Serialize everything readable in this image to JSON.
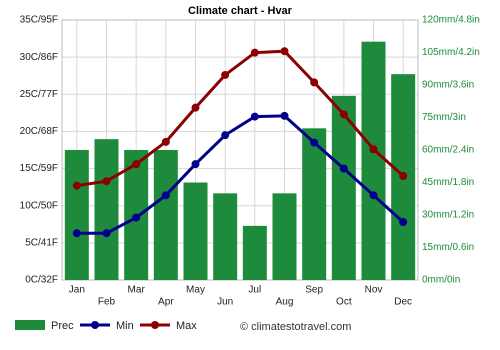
{
  "chart_data": {
    "type": "bar_line",
    "title": "Climate chart - Hvar",
    "categories": [
      "Jan",
      "Feb",
      "Mar",
      "Apr",
      "May",
      "Jun",
      "Jul",
      "Aug",
      "Sep",
      "Oct",
      "Nov",
      "Dec"
    ],
    "series": [
      {
        "name": "Prec",
        "color": "#1e8b3c",
        "type": "bar",
        "axis": "y2",
        "values": [
          60,
          65,
          60,
          60,
          45,
          40,
          25,
          40,
          70,
          85,
          110,
          95
        ]
      },
      {
        "name": "Min",
        "color": "#00008b",
        "type": "line",
        "values": [
          6.3,
          6.3,
          8.4,
          11.4,
          15.6,
          19.5,
          22,
          22.1,
          18.5,
          15,
          11.4,
          7.8
        ]
      },
      {
        "name": "Max",
        "color": "#8b0000",
        "type": "line",
        "values": [
          12.7,
          13.3,
          15.6,
          18.6,
          23.2,
          27.6,
          30.6,
          30.8,
          26.6,
          22.3,
          17.6,
          14
        ]
      }
    ],
    "ylim": [
      0,
      35
    ],
    "yticks": [
      {
        "value": 0,
        "label": "0C/32F"
      },
      {
        "value": 5,
        "label": "5C/41F"
      },
      {
        "value": 10,
        "label": "10C/50F"
      },
      {
        "value": 15,
        "label": "15C/59F"
      },
      {
        "value": 20,
        "label": "20C/68F"
      },
      {
        "value": 25,
        "label": "25C/77F"
      },
      {
        "value": 30,
        "label": "30C/86F"
      },
      {
        "value": 35,
        "label": "35C/95F"
      }
    ],
    "y2lim": [
      0,
      120
    ],
    "y2ticks": [
      {
        "value": 0,
        "label": "0mm/0in"
      },
      {
        "value": 15,
        "label": "15mm/0.6in"
      },
      {
        "value": 30,
        "label": "30mm/1.2in"
      },
      {
        "value": 45,
        "label": "45mm/1.8in"
      },
      {
        "value": 60,
        "label": "60mm/2.4in"
      },
      {
        "value": 75,
        "label": "75mm/3in"
      },
      {
        "value": 90,
        "label": "90mm/3.6in"
      },
      {
        "value": 105,
        "label": "105mm/4.2in"
      },
      {
        "value": 120,
        "label": "120mm/4.8in"
      }
    ],
    "grid": true,
    "legend": "bottom-left",
    "credit": "© climatestotravel.com"
  }
}
